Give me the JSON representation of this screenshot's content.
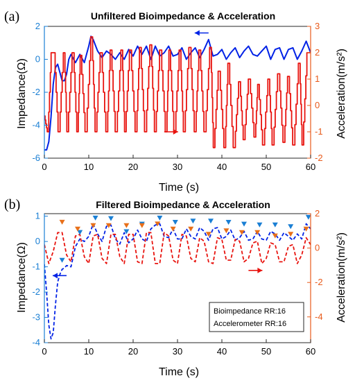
{
  "colors": {
    "impedance": "#0022e6",
    "acceleration": "#e8130e",
    "left_axis": "#1a7fd4",
    "right_axis": "#e85a1a",
    "marker_blue": "#1a7fd4",
    "marker_orange": "#e8701a"
  },
  "chart_data": [
    {
      "type": "line",
      "panel_label": "(a)",
      "title": "Unfiltered Bioimpedance & Acceleration",
      "xlabel": "Time (s)",
      "ylabel_left": "Impedance(Ω)",
      "ylabel_right": "Acceleration(m/s²)",
      "xlim": [
        0,
        60
      ],
      "ylim_left": [
        -6,
        2
      ],
      "ylim_right": [
        -2,
        3
      ],
      "x_ticks": [
        "0",
        "10",
        "20",
        "30",
        "40",
        "50",
        "60"
      ],
      "y_ticks_left": [
        "-6",
        "-4",
        "-2",
        "0",
        "2"
      ],
      "y_ticks_right": [
        "-2",
        "-1",
        "0",
        "1",
        "2",
        "3"
      ],
      "grid": false,
      "series": [
        {
          "axis": "left",
          "style": "solid",
          "x": [
            0,
            0.5,
            1,
            1.5,
            2,
            2.5,
            3,
            3.5,
            4,
            4.5,
            5,
            5.5,
            6,
            7,
            8,
            9,
            10,
            10.5,
            11,
            12,
            13,
            14,
            15,
            16,
            17,
            18,
            19,
            20,
            21,
            22,
            23,
            24,
            25,
            26,
            27,
            28,
            29,
            30,
            31,
            32,
            33,
            34,
            35,
            36,
            37,
            38,
            39,
            40,
            41,
            42,
            43,
            44,
            45,
            46,
            47,
            48,
            49,
            50,
            51,
            52,
            53,
            54,
            55,
            56,
            57,
            58,
            59,
            60
          ],
          "values": [
            -5.5,
            -5.5,
            -5.0,
            -3.5,
            -1.5,
            -0.5,
            -0.3,
            -0.8,
            -1.3,
            -1.3,
            -0.9,
            0.0,
            0.3,
            -0.2,
            0.3,
            -0.2,
            0.8,
            1.4,
            1.2,
            0.5,
            0.1,
            0.5,
            0.3,
            0.0,
            0.4,
            0.0,
            0.6,
            0.2,
            0.8,
            0.3,
            0.8,
            0.0,
            0.8,
            0.2,
            0.4,
            0.8,
            0.2,
            0.3,
            0.7,
            0.0,
            0.4,
            0.7,
            0.1,
            0.6,
            1.2,
            0.2,
            0.3,
            0.6,
            0.0,
            0.4,
            0.7,
            0.1,
            0.5,
            0.8,
            0.3,
            0.2,
            0.5,
            0.8,
            0.0,
            0.6,
            0.7,
            0.0,
            0.6,
            0.7,
            0.0,
            0.5,
            1.1,
            0.4
          ]
        },
        {
          "axis": "right",
          "style": "stepped",
          "x": [
            0,
            0.8,
            1.7,
            2.2,
            3.3,
            4.5,
            5.2,
            6.5,
            7.5,
            8.2,
            9.4,
            10.7,
            11.6,
            12.8,
            14.1,
            15.0,
            16.2,
            17.5,
            18.2,
            19.4,
            20.7,
            21.6,
            22.8,
            24.0,
            25.0,
            26.2,
            27.5,
            28.2,
            29.4,
            30.6,
            31.5,
            32.8,
            34.0,
            35.0,
            36.2,
            37.5,
            38.2,
            39.4,
            40.7,
            41.5,
            42.8,
            44.0,
            45.0,
            46.2,
            47.5,
            48.2,
            49.4,
            50.6,
            51.5,
            52.8,
            54.0,
            55.0,
            56.2,
            57.5,
            58.2,
            59.4,
            60
          ],
          "values": [
            -0.4,
            -1.0,
            2.0,
            2.0,
            -1.0,
            2.0,
            -1.0,
            2.0,
            -1.0,
            1.9,
            -1.0,
            2.6,
            -1.0,
            2.0,
            -1.0,
            2.1,
            -1.0,
            2.1,
            -1.0,
            2.1,
            -1.0,
            2.2,
            -1.0,
            2.3,
            -1.0,
            2.1,
            -1.0,
            2.1,
            -1.0,
            2.1,
            -1.0,
            2.2,
            -1.0,
            2.1,
            -1.0,
            2.2,
            -1.6,
            1.3,
            -1.6,
            1.6,
            -1.6,
            0.9,
            -1.3,
            1.0,
            -1.2,
            0.8,
            -1.5,
            1.0,
            -1.5,
            1.2,
            -1.4,
            1.1,
            -1.5,
            1.6,
            -1.5,
            2.0,
            2.0
          ]
        }
      ],
      "annotations": [
        {
          "type": "arrow",
          "direction": "left",
          "at": [
            37,
            1.6
          ],
          "axis": "left",
          "color": "impedance"
        },
        {
          "type": "arrow",
          "direction": "right",
          "at": [
            27,
            -1.0
          ],
          "axis": "right",
          "color": "acceleration"
        }
      ]
    },
    {
      "type": "line",
      "panel_label": "(b)",
      "title": "Filtered Bioimpedance & Acceleration",
      "xlabel": "Time (s)",
      "ylabel_left": "Impedance(Ω)",
      "ylabel_right": "Acceleration(m/s²)",
      "xlim": [
        0,
        60
      ],
      "ylim_left": [
        -4,
        1.1
      ],
      "ylim_right": [
        -5.5,
        2
      ],
      "x_ticks": [
        "0",
        "10",
        "20",
        "30",
        "40",
        "50",
        "60"
      ],
      "y_ticks_left": [
        "-4",
        "-3",
        "-2",
        "-1",
        "0",
        "1"
      ],
      "y_ticks_right": [
        "-4",
        "-2",
        "0",
        "2"
      ],
      "grid": false,
      "series": [
        {
          "axis": "left",
          "style": "dashed",
          "x": [
            0,
            0.5,
            1,
            1.5,
            2,
            2.5,
            3,
            3.5,
            4,
            4.5,
            5,
            6,
            7,
            8,
            9,
            10,
            11,
            12,
            13,
            14,
            15,
            16,
            17,
            18,
            19,
            20,
            21,
            22,
            23,
            24,
            25,
            26,
            27,
            28,
            29,
            30,
            31,
            32,
            33,
            34,
            35,
            36,
            37,
            38,
            39,
            40,
            41,
            42,
            43,
            44,
            45,
            46,
            47,
            48,
            49,
            50,
            51,
            52,
            53,
            54,
            55,
            56,
            57,
            58,
            59,
            60
          ],
          "values": [
            -0.9,
            -2.0,
            -3.3,
            -3.85,
            -3.6,
            -2.5,
            -1.6,
            -1.3,
            -1.1,
            -1.05,
            -0.95,
            -1.0,
            -0.2,
            0.1,
            0.0,
            0.2,
            0.7,
            0.3,
            0.0,
            0.6,
            0.65,
            0.1,
            -0.1,
            0.35,
            -0.05,
            0.1,
            0.45,
            0.1,
            0.0,
            0.5,
            0.65,
            0.7,
            0.2,
            0.15,
            0.5,
            0.1,
            0.1,
            0.5,
            0.2,
            0.1,
            0.55,
            0.4,
            0.05,
            0.5,
            0.55,
            0.1,
            0.2,
            0.45,
            0.05,
            0.15,
            0.4,
            0.05,
            0.1,
            0.4,
            0.1,
            0.05,
            0.4,
            0.3,
            0.05,
            0.35,
            0.2,
            0.05,
            0.3,
            0.1,
            0.7,
            0.5
          ]
        },
        {
          "axis": "right",
          "style": "dashed",
          "x": [
            0,
            1,
            2,
            3,
            4,
            5,
            6,
            7,
            8,
            9,
            10,
            11,
            12,
            13,
            14,
            15,
            16,
            17,
            18,
            19,
            20,
            21,
            22,
            23,
            24,
            25,
            26,
            27,
            28,
            29,
            30,
            31,
            32,
            33,
            34,
            35,
            36,
            37,
            38,
            39,
            40,
            41,
            42,
            43,
            44,
            45,
            46,
            47,
            48,
            49,
            50,
            51,
            52,
            53,
            54,
            55,
            56,
            57,
            58,
            59,
            60
          ],
          "values": [
            0.2,
            -0.9,
            -0.2,
            0.9,
            0.9,
            -0.4,
            -0.8,
            0.7,
            0.8,
            -0.5,
            -0.9,
            0.7,
            0.8,
            -0.6,
            -0.9,
            0.8,
            0.8,
            -0.5,
            -0.9,
            0.8,
            0.8,
            -0.8,
            -0.9,
            0.9,
            0.9,
            -0.9,
            -0.9,
            0.9,
            0.7,
            -0.7,
            -0.9,
            0.8,
            0.7,
            -0.6,
            -0.8,
            0.6,
            0.4,
            -0.8,
            -0.9,
            0.6,
            0.5,
            -0.7,
            -0.7,
            0.5,
            0.4,
            -0.8,
            -0.6,
            0.3,
            0.4,
            -0.9,
            -0.6,
            0.3,
            0.2,
            -0.8,
            -0.8,
            0.1,
            0.2,
            -0.9,
            -0.4,
            0.6,
            0.2
          ]
        }
      ],
      "peaks_left": {
        "x": [
          4,
          8,
          11.5,
          15,
          18.5,
          22,
          26,
          29.5,
          33.5,
          37.5,
          41.5,
          45,
          48.5,
          52,
          55.5,
          59.5
        ],
        "values": [
          -0.95,
          0.15,
          0.72,
          0.7,
          0.18,
          0.48,
          0.72,
          0.55,
          0.6,
          0.6,
          0.55,
          0.48,
          0.45,
          0.45,
          0.38,
          0.75
        ]
      },
      "peaks_right": {
        "x": [
          4,
          7.5,
          11,
          14.5,
          18.5,
          22,
          25.5,
          29,
          33,
          37,
          41,
          44.5,
          48,
          52,
          55.5,
          59
        ],
        "values": [
          1.2,
          0.8,
          1.0,
          1.0,
          1.0,
          1.0,
          1.1,
          0.8,
          0.8,
          0.5,
          0.7,
          0.6,
          0.6,
          0.4,
          0.5,
          0.8
        ]
      },
      "annotations": [
        {
          "type": "arrow",
          "direction": "left",
          "at": [
            5,
            -1.35
          ],
          "axis": "left",
          "color": "impedance"
        },
        {
          "type": "arrow",
          "direction": "right",
          "at": [
            46,
            -1.3
          ],
          "axis": "right",
          "color": "acceleration"
        }
      ],
      "legend": {
        "placement": "bottom-right",
        "lines": [
          "Bioimpedance RR:16",
          "Accelerometer RR:16"
        ]
      }
    }
  ]
}
